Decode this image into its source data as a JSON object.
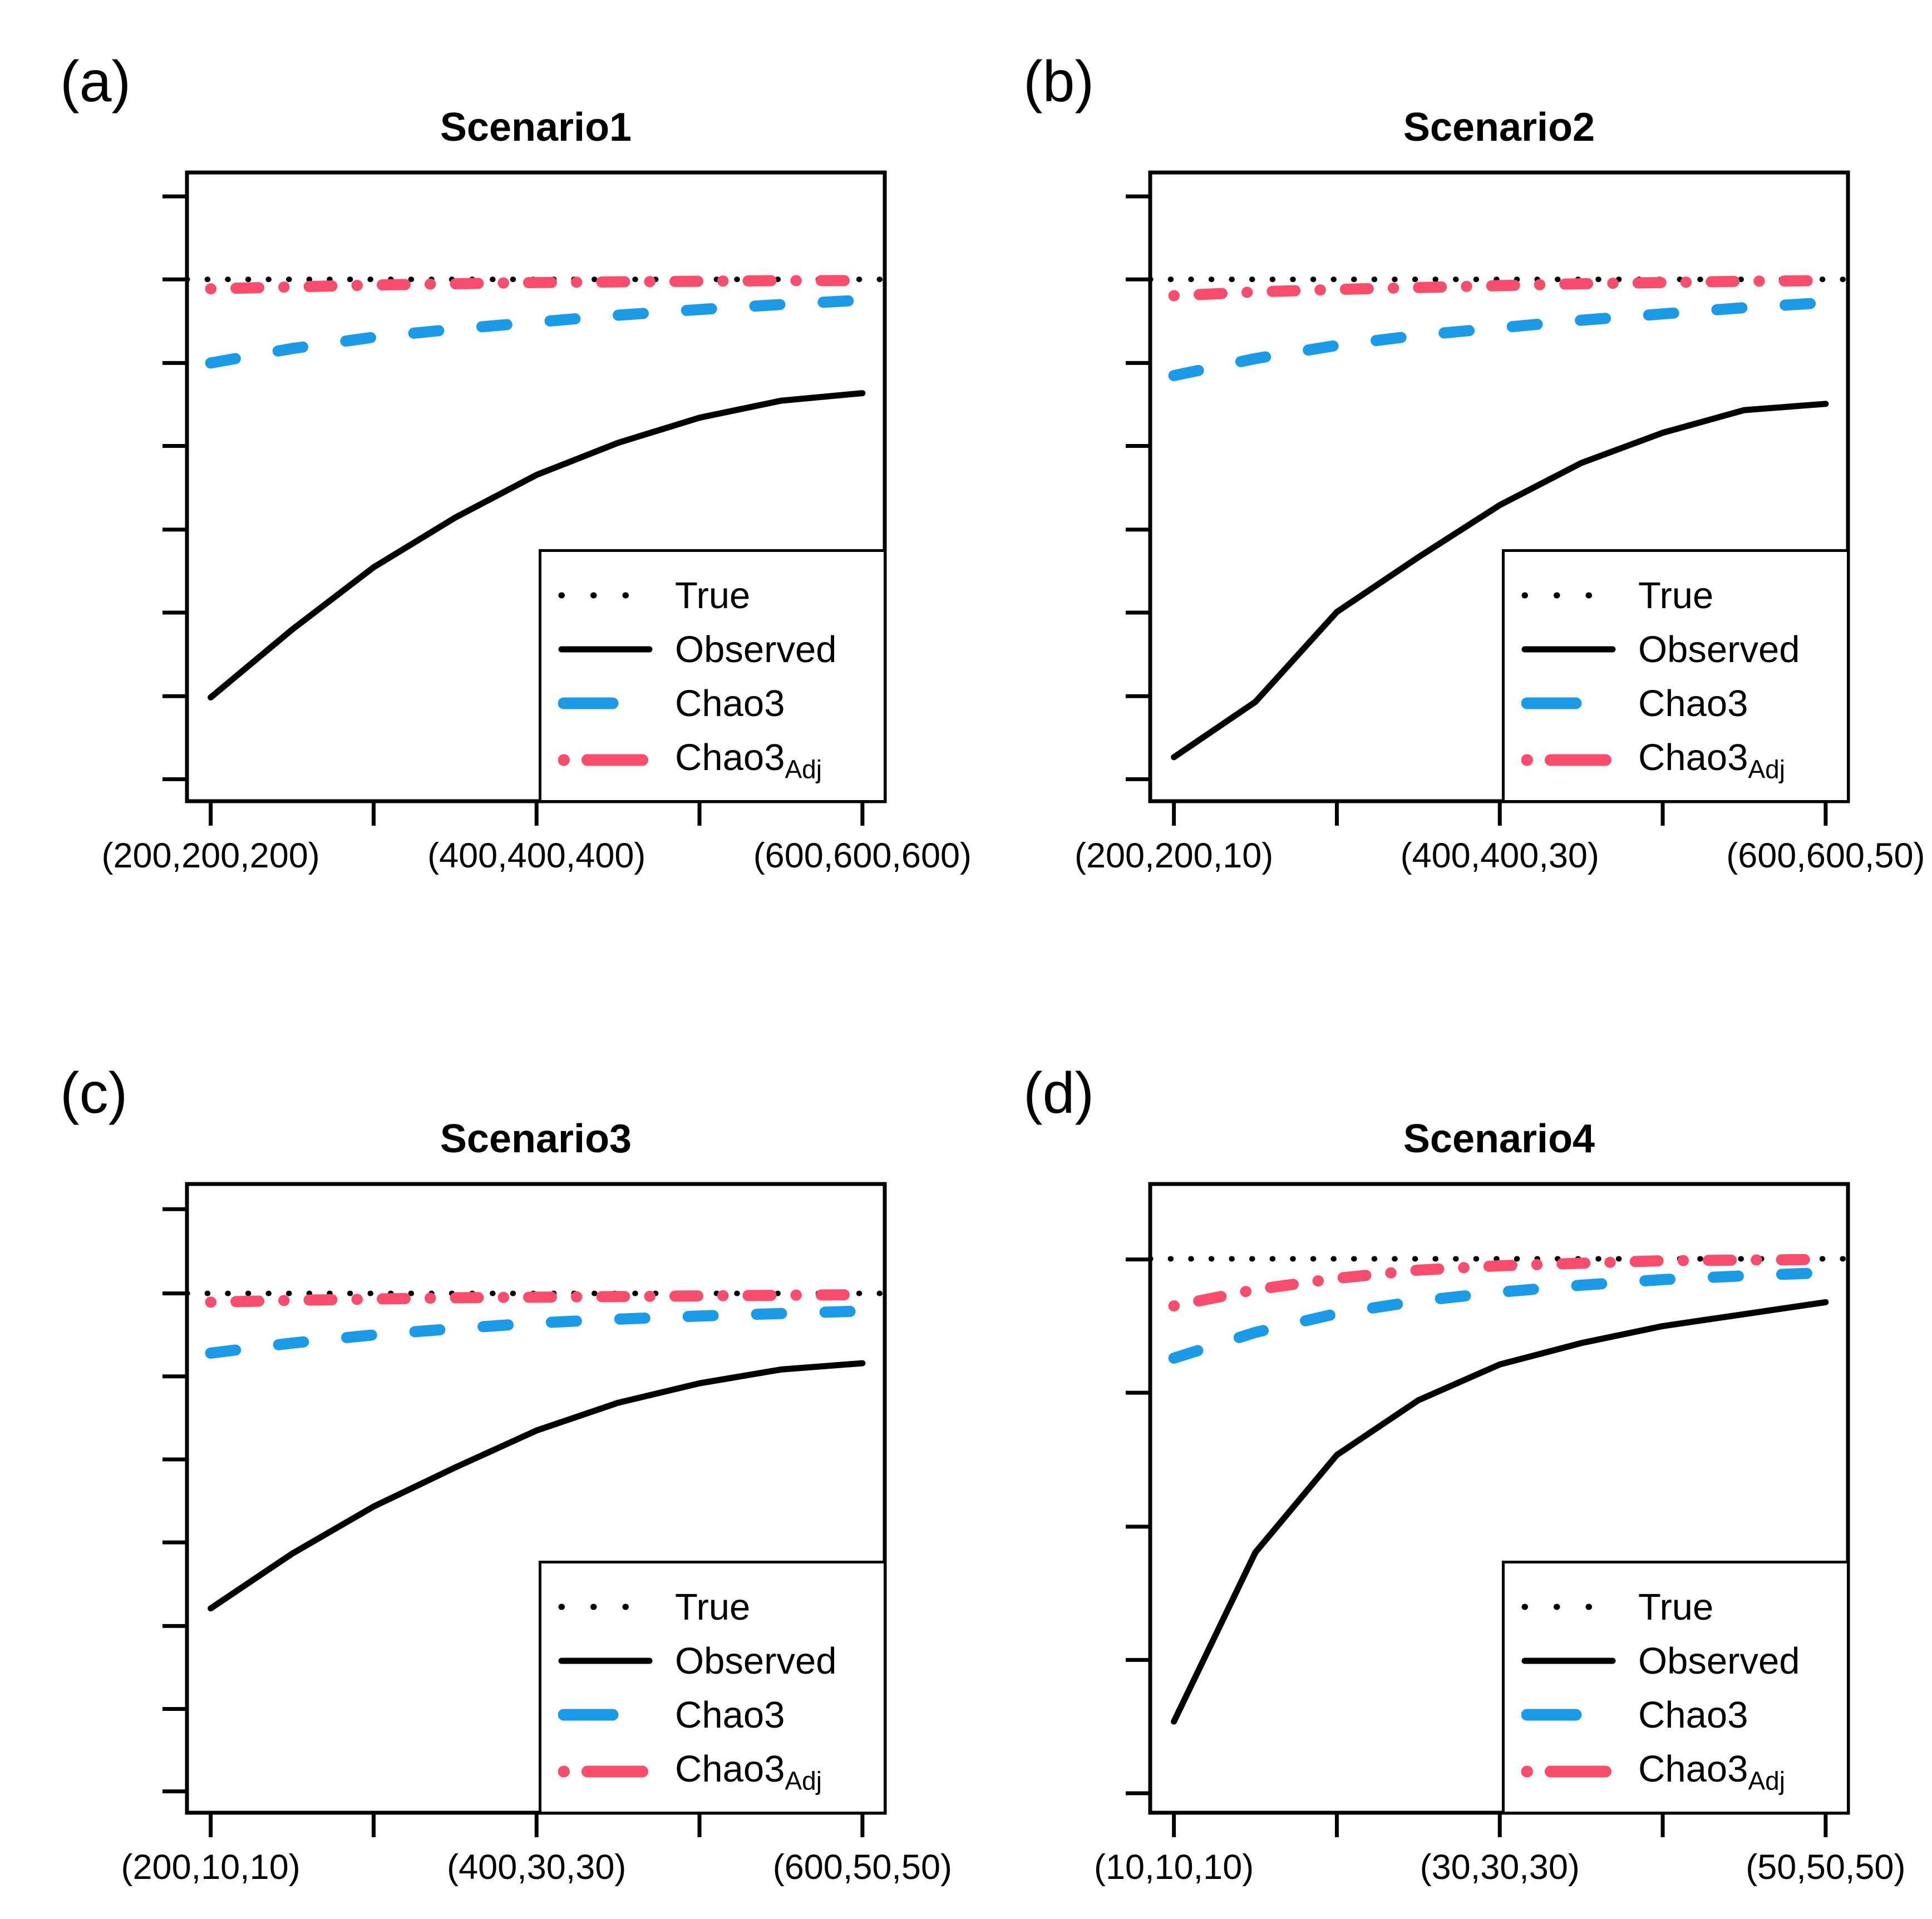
{
  "figure": {
    "background": "#ffffff",
    "colors": {
      "true": "#000000",
      "observed": "#000000",
      "chao3": "#1B9AE8",
      "chao3_adj": "#FA4D6B"
    },
    "legend": {
      "items": [
        {
          "label": "True",
          "series": "true"
        },
        {
          "label": "Observed",
          "series": "observed"
        },
        {
          "label": "Chao3",
          "series": "chao3"
        },
        {
          "label": "Chao3",
          "sub": "Adj",
          "series": "chao3_adj"
        }
      ]
    }
  },
  "chart_data": [
    {
      "type": "line",
      "panel_label": "(a)",
      "title": "Scenario1",
      "x_ticks": [
        200,
        300,
        400,
        500,
        600
      ],
      "x_tick_labels": [
        "(200,200,200)",
        "(400,400,400)",
        "(600,600,600)"
      ],
      "xlim": [
        185,
        614
      ],
      "y_axis": {
        "labeled": false,
        "n_ticks": 8
      },
      "y_tick_fracs_from_top": [
        0.038,
        0.17,
        0.303,
        0.435,
        0.568,
        0.7,
        0.833,
        0.965
      ],
      "y_unit": "fraction of plot-box height from bottom (y axis has no labels)",
      "series": [
        {
          "name": "True",
          "key": "true",
          "style": "dotted",
          "span": "full-width",
          "y": 0.83
        },
        {
          "name": "Observed",
          "key": "observed",
          "style": "solid",
          "x": [
            200,
            250,
            300,
            350,
            400,
            450,
            500,
            550,
            600
          ],
          "y": [
            0.165,
            0.273,
            0.372,
            0.451,
            0.519,
            0.57,
            0.61,
            0.637,
            0.649
          ]
        },
        {
          "name": "Chao3",
          "key": "chao3",
          "style": "dashed",
          "x": [
            200,
            250,
            300,
            350,
            400,
            450,
            500,
            550,
            600
          ],
          "y": [
            0.697,
            0.72,
            0.738,
            0.751,
            0.762,
            0.773,
            0.782,
            0.79,
            0.797
          ]
        },
        {
          "name": "Chao3Adj",
          "key": "chao3_adj",
          "style": "dashdot",
          "x": [
            200,
            250,
            300,
            350,
            400,
            450,
            500,
            550,
            600
          ],
          "y": [
            0.815,
            0.818,
            0.821,
            0.823,
            0.825,
            0.826,
            0.827,
            0.828,
            0.828
          ]
        }
      ]
    },
    {
      "type": "line",
      "panel_label": "(b)",
      "title": "Scenario2",
      "x_ticks": [
        200,
        300,
        400,
        500,
        600
      ],
      "x_tick_labels": [
        "(200,200,10)",
        "(400,400,30)",
        "(600,600,50)"
      ],
      "xlim": [
        185,
        614
      ],
      "y_axis": {
        "labeled": false,
        "n_ticks": 8
      },
      "y_tick_fracs_from_top": [
        0.038,
        0.17,
        0.303,
        0.435,
        0.568,
        0.7,
        0.833,
        0.965
      ],
      "y_unit": "fraction of plot-box height from bottom (y axis has no labels)",
      "series": [
        {
          "name": "True",
          "key": "true",
          "style": "dotted",
          "span": "full-width",
          "y": 0.83
        },
        {
          "name": "Observed",
          "key": "observed",
          "style": "solid",
          "x": [
            200,
            250,
            300,
            350,
            400,
            450,
            500,
            550,
            600
          ],
          "y": [
            0.07,
            0.158,
            0.301,
            0.388,
            0.471,
            0.538,
            0.586,
            0.622,
            0.632
          ]
        },
        {
          "name": "Chao3",
          "key": "chao3",
          "style": "dashed",
          "x": [
            200,
            250,
            300,
            350,
            400,
            450,
            500,
            550,
            600
          ],
          "y": [
            0.677,
            0.704,
            0.725,
            0.741,
            0.753,
            0.765,
            0.775,
            0.785,
            0.793
          ]
        },
        {
          "name": "Chao3Adj",
          "key": "chao3_adj",
          "style": "dashdot",
          "x": [
            200,
            250,
            300,
            350,
            400,
            450,
            500,
            550,
            600
          ],
          "y": [
            0.804,
            0.81,
            0.814,
            0.817,
            0.82,
            0.823,
            0.825,
            0.827,
            0.828
          ]
        }
      ]
    },
    {
      "type": "line",
      "panel_label": "(c)",
      "title": "Scenario3",
      "x_ticks": [
        200,
        300,
        400,
        500,
        600
      ],
      "x_tick_labels": [
        "(200,10,10)",
        "(400,30,30)",
        "(600,50,50)"
      ],
      "xlim": [
        185,
        614
      ],
      "y_axis": {
        "labeled": false,
        "n_ticks": 8
      },
      "y_tick_fracs_from_top": [
        0.04,
        0.174,
        0.306,
        0.438,
        0.57,
        0.703,
        0.835,
        0.966
      ],
      "y_unit": "fraction of plot-box height from bottom (y axis has no labels)",
      "series": [
        {
          "name": "True",
          "key": "true",
          "style": "dotted",
          "span": "full-width",
          "y": 0.826
        },
        {
          "name": "Observed",
          "key": "observed",
          "style": "solid",
          "x": [
            200,
            250,
            300,
            350,
            400,
            450,
            500,
            550,
            600
          ],
          "y": [
            0.325,
            0.412,
            0.487,
            0.549,
            0.608,
            0.652,
            0.683,
            0.705,
            0.715
          ]
        },
        {
          "name": "Chao3",
          "key": "chao3",
          "style": "dashed",
          "x": [
            200,
            250,
            300,
            350,
            400,
            450,
            500,
            550,
            600
          ],
          "y": [
            0.731,
            0.747,
            0.76,
            0.77,
            0.779,
            0.785,
            0.79,
            0.794,
            0.798
          ]
        },
        {
          "name": "Chao3Adj",
          "key": "chao3_adj",
          "style": "dashdot",
          "x": [
            200,
            250,
            300,
            350,
            400,
            450,
            500,
            550,
            600
          ],
          "y": [
            0.812,
            0.815,
            0.817,
            0.819,
            0.82,
            0.821,
            0.822,
            0.823,
            0.824
          ]
        }
      ]
    },
    {
      "type": "line",
      "panel_label": "(d)",
      "title": "Scenario4",
      "x_ticks": [
        10,
        20,
        30,
        40,
        50
      ],
      "x_tick_labels": [
        "(10,10,10)",
        "(30,30,30)",
        "(50,50,50)"
      ],
      "xlim": [
        8.5,
        51.4
      ],
      "y_axis": {
        "labeled": false,
        "n_ticks": 5
      },
      "y_tick_fracs_from_top": [
        0.12,
        0.332,
        0.545,
        0.757,
        0.969
      ],
      "y_unit": "fraction of plot-box height from bottom (y axis has no labels)",
      "series": [
        {
          "name": "True",
          "key": "true",
          "style": "dotted",
          "span": "full-width",
          "y": 0.881
        },
        {
          "name": "Observed",
          "key": "observed",
          "style": "solid",
          "x": [
            10,
            15,
            20,
            25,
            30,
            35,
            40,
            45,
            50
          ],
          "y": [
            0.145,
            0.414,
            0.569,
            0.656,
            0.713,
            0.747,
            0.774,
            0.793,
            0.812
          ]
        },
        {
          "name": "Chao3",
          "key": "chao3",
          "style": "dashed",
          "x": [
            10,
            15,
            20,
            25,
            30,
            35,
            40,
            45,
            50
          ],
          "y": [
            0.723,
            0.764,
            0.794,
            0.814,
            0.828,
            0.839,
            0.848,
            0.854,
            0.859
          ]
        },
        {
          "name": "Chao3Adj",
          "key": "chao3_adj",
          "style": "dashdot",
          "x": [
            10,
            15,
            20,
            25,
            30,
            35,
            40,
            45,
            50
          ],
          "y": [
            0.806,
            0.832,
            0.85,
            0.863,
            0.87,
            0.874,
            0.878,
            0.879,
            0.88
          ]
        }
      ]
    }
  ]
}
